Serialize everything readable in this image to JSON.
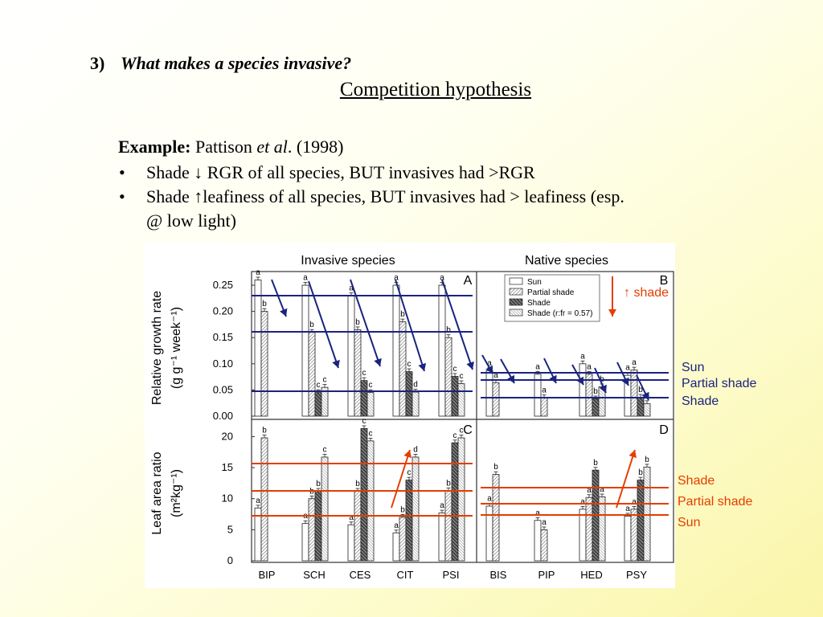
{
  "heading": {
    "number": "3)",
    "text": "What makes a species invasive?"
  },
  "subheading": "Competition hypothesis",
  "example": {
    "label": "Example:",
    "author": "Pattison",
    "etal": "et al",
    "year": ". (1998)"
  },
  "bullets": [
    {
      "marker": "•",
      "text": "Shade ↓ RGR of all species, BUT invasives had >RGR"
    },
    {
      "marker": "•",
      "line1": "Shade ↑leafiness of all species, BUT invasives had > leafiness (esp.",
      "line2": "@ low light)"
    }
  ],
  "side_labels": {
    "up_shade": "↑ shade",
    "rgr": [
      "Sun",
      "Partial shade",
      "Shade"
    ],
    "lar": [
      "Shade",
      "Partial shade",
      "Sun"
    ]
  },
  "colors": {
    "blue": "#1a237e",
    "red": "#e53d00",
    "bar_sun": "#ffffff",
    "bar_partial": "#b9b9b9",
    "bar_shade": "#555555",
    "bar_shade_rfr": "#d6d6d6"
  },
  "chart_data": [
    {
      "type": "bar",
      "panel": "A",
      "title": "Invasive species",
      "ylabel": "Relative growth rate",
      "ylabel_units": "(g g⁻¹ week⁻¹)",
      "ylim": [
        0,
        0.27
      ],
      "yticks": [
        "0.25",
        "0.20",
        "0.15",
        "0.10",
        "0.05",
        "0.00"
      ],
      "categories": [
        "BIP",
        "SCH",
        "CES",
        "CIT",
        "PSI"
      ],
      "series": [
        {
          "name": "Sun",
          "values": [
            0.26,
            0.25,
            0.23,
            0.25,
            0.25
          ],
          "labels": [
            "a",
            "a",
            "a",
            "a",
            "a"
          ]
        },
        {
          "name": "Partial shade",
          "values": [
            0.2,
            0.16,
            0.165,
            0.18,
            0.15
          ],
          "labels": [
            "b",
            "b",
            "b",
            "b",
            "b"
          ]
        },
        {
          "name": "Shade",
          "values": [
            null,
            0.045,
            0.068,
            0.085,
            0.076
          ],
          "labels": [
            "",
            "c",
            "c",
            "c",
            "c"
          ]
        },
        {
          "name": "Shade (r:fr = 0.57)",
          "values": [
            null,
            0.055,
            0.045,
            0.046,
            0.062
          ],
          "labels": [
            "",
            "c",
            "c",
            "d",
            "c"
          ]
        }
      ]
    },
    {
      "type": "bar",
      "panel": "B",
      "title": "Native species",
      "ylim": [
        0,
        0.27
      ],
      "categories": [
        "BIS",
        "PIP",
        "HED",
        "PSY"
      ],
      "series": [
        {
          "name": "Sun",
          "values": [
            0.087,
            0.08,
            0.1,
            0.078
          ],
          "labels": [
            "a",
            "a",
            "a",
            "a"
          ]
        },
        {
          "name": "Partial shade",
          "values": [
            0.064,
            0.035,
            0.08,
            0.088
          ],
          "labels": [
            "a",
            "a",
            "a",
            "a"
          ]
        },
        {
          "name": "Shade",
          "values": [
            null,
            null,
            0.033,
            0.036
          ],
          "labels": [
            "",
            "",
            "b",
            "b"
          ]
        },
        {
          "name": "Shade (r:fr = 0.57)",
          "values": [
            null,
            null,
            0.056,
            0.024
          ],
          "labels": [
            "",
            "",
            "b",
            "b"
          ]
        }
      ],
      "legend": [
        "Sun",
        "Partial shade",
        "Shade",
        "Shade (r:fr = 0.57)"
      ],
      "legend_position": "top-right"
    },
    {
      "type": "bar",
      "panel": "C",
      "ylabel": "Leaf area ratio",
      "ylabel_units": "(m²kg⁻¹)",
      "ylim": [
        0,
        22
      ],
      "yticks": [
        "20",
        "15",
        "10",
        "5",
        "0"
      ],
      "categories": [
        "BIP",
        "SCH",
        "CES",
        "CIT",
        "PSI"
      ],
      "series": [
        {
          "name": "Sun",
          "values": [
            8.5,
            6.0,
            5.8,
            4.5,
            7.7
          ],
          "labels": [
            "a",
            "a",
            "a",
            "a",
            "a"
          ]
        },
        {
          "name": "Partial shade",
          "values": [
            19.8,
            10.0,
            11.2,
            7.0,
            11.3
          ],
          "labels": [
            "b",
            "b",
            "b",
            "b",
            "b"
          ]
        },
        {
          "name": "Shade",
          "values": [
            null,
            11.2,
            21.3,
            13.0,
            19.0
          ],
          "labels": [
            "",
            "b",
            "c",
            "c",
            "c"
          ]
        },
        {
          "name": "Shade (r:fr = 0.57)",
          "values": [
            null,
            16.7,
            19.3,
            16.7,
            19.8
          ],
          "labels": [
            "",
            "c",
            "c",
            "d",
            "c"
          ]
        }
      ]
    },
    {
      "type": "bar",
      "panel": "D",
      "ylim": [
        0,
        22
      ],
      "categories": [
        "BIS",
        "PIP",
        "HED",
        "PSY"
      ],
      "series": [
        {
          "name": "Sun",
          "values": [
            8.8,
            6.5,
            8.3,
            7.2
          ],
          "labels": [
            "a",
            "a",
            "a",
            "a"
          ]
        },
        {
          "name": "Partial shade",
          "values": [
            13.9,
            5.0,
            10.2,
            8.3
          ],
          "labels": [
            "b",
            "a",
            "a",
            "a"
          ]
        },
        {
          "name": "Shade",
          "values": [
            null,
            null,
            14.6,
            13.0
          ],
          "labels": [
            "",
            "",
            "b",
            "b"
          ]
        },
        {
          "name": "Shade (r:fr = 0.57)",
          "values": [
            null,
            null,
            10.3,
            15.1
          ],
          "labels": [
            "",
            "",
            "a",
            "b"
          ]
        }
      ]
    }
  ]
}
